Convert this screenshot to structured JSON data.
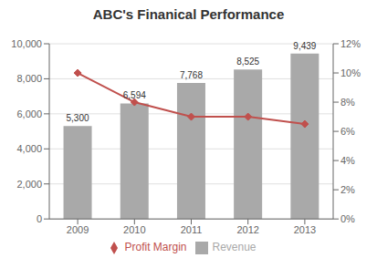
{
  "chart_data": {
    "type": "bar",
    "title": "ABC's Finanical Performance",
    "categories": [
      "2009",
      "2010",
      "2011",
      "2012",
      "2013"
    ],
    "series": [
      {
        "name": "Revenue",
        "type": "bar",
        "color": "#A9A9A9",
        "values": [
          5300,
          6594,
          7768,
          8525,
          9439
        ],
        "value_labels": [
          "5,300",
          "6,594",
          "7,768",
          "8,525",
          "9,439"
        ]
      },
      {
        "name": "Profit Margin",
        "type": "line",
        "axis": "y2",
        "color": "#C0504D",
        "marker": "diamond",
        "values": [
          0.1,
          0.08,
          0.07,
          0.07,
          0.065
        ]
      }
    ],
    "data_labels": true,
    "ylim": [
      0,
      10000
    ],
    "yticks": [
      0,
      {
        "value": 2000,
        "label": "2,000"
      },
      {
        "value": 4000,
        "label": "4,000"
      },
      {
        "value": 6000,
        "label": "6,000"
      },
      {
        "value": 8000,
        "label": "8,000"
      },
      {
        "value": 10000,
        "label": "10,000"
      }
    ],
    "y2lim": [
      0,
      0.12
    ],
    "y2ticks": [
      {
        "value": 0,
        "label": "0%"
      },
      {
        "value": 0.02,
        "label": "2%"
      },
      {
        "value": 0.04,
        "label": "4%"
      },
      {
        "value": 0.06,
        "label": "6%"
      },
      {
        "value": 0.08,
        "label": "8%"
      },
      {
        "value": 0.1,
        "label": "10%"
      },
      {
        "value": 0.12,
        "label": "12%"
      }
    ],
    "grid": true,
    "legend": "bottom"
  }
}
